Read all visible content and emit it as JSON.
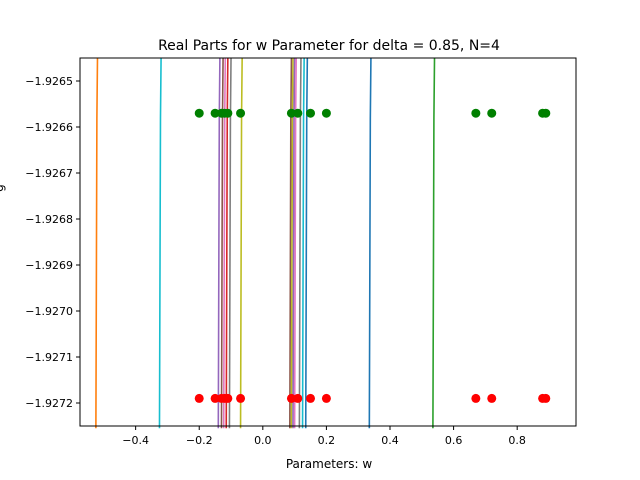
{
  "chart_data": {
    "type": "line+scatter",
    "title": "Real Parts for w Parameter for delta = 0.85, N=4",
    "xlabel": "Parameters: w",
    "ylabel": "g",
    "xlim": [
      -0.575,
      0.985
    ],
    "ylim": [
      -1.92725,
      -1.92645
    ],
    "xticks": [
      -0.4,
      -0.2,
      0.0,
      0.2,
      0.4,
      0.6,
      0.8
    ],
    "xtick_labels": [
      "−0.4",
      "−0.2",
      "0.0",
      "0.2",
      "0.4",
      "0.6",
      "0.8"
    ],
    "yticks": [
      -1.9265,
      -1.9266,
      -1.9267,
      -1.9268,
      -1.9269,
      -1.927,
      -1.9271,
      -1.9272
    ],
    "ytick_labels": [
      "−1.9265",
      "−1.9266",
      "−1.9267",
      "−1.9268",
      "−1.9269",
      "−1.9270",
      "−1.9271",
      "−1.9272"
    ],
    "grid": false,
    "legend": "none",
    "colors": {
      "series": [
        "#1f77b4",
        "#ff7f0e",
        "#2ca02c",
        "#d62728",
        "#9467bd",
        "#8c564b",
        "#e377c2",
        "#7f7f7f",
        "#bcbd22",
        "#17becf"
      ],
      "upper_points": "#008000",
      "lower_points": "#ff0000"
    },
    "curves": [
      {
        "x": -0.52,
        "color": "#ff7f0e"
      },
      {
        "x": -0.32,
        "color": "#17becf"
      },
      {
        "x": -0.135,
        "color": "#9467bd"
      },
      {
        "x": -0.125,
        "color": "#8c564b"
      },
      {
        "x": -0.118,
        "color": "#e377c2"
      },
      {
        "x": -0.11,
        "color": "#d62728"
      },
      {
        "x": -0.1,
        "color": "#7f7f7f"
      },
      {
        "x": -0.065,
        "color": "#bcbd22"
      },
      {
        "x": 0.09,
        "color": "#8c564b"
      },
      {
        "x": 0.095,
        "color": "#bcbd22"
      },
      {
        "x": 0.1,
        "color": "#9467bd"
      },
      {
        "x": 0.105,
        "color": "#e377c2"
      },
      {
        "x": 0.12,
        "color": "#7f7f7f"
      },
      {
        "x": 0.13,
        "color": "#17becf"
      },
      {
        "x": 0.14,
        "color": "#1f77b4"
      },
      {
        "x": 0.34,
        "color": "#1f77b4"
      },
      {
        "x": 0.54,
        "color": "#2ca02c"
      }
    ],
    "curve_y_top": -1.92645,
    "curve_y_bottom": -1.927255,
    "upper_points": {
      "y": -1.92657,
      "x": [
        -0.2,
        -0.15,
        -0.13,
        -0.12,
        -0.11,
        -0.07,
        0.09,
        0.11,
        0.15,
        0.2,
        0.67,
        0.72,
        0.88,
        0.89
      ]
    },
    "lower_points": {
      "y": -1.92719,
      "x": [
        -0.2,
        -0.15,
        -0.13,
        -0.12,
        -0.11,
        -0.07,
        0.09,
        0.11,
        0.15,
        0.2,
        0.67,
        0.72,
        0.88,
        0.89
      ]
    }
  }
}
